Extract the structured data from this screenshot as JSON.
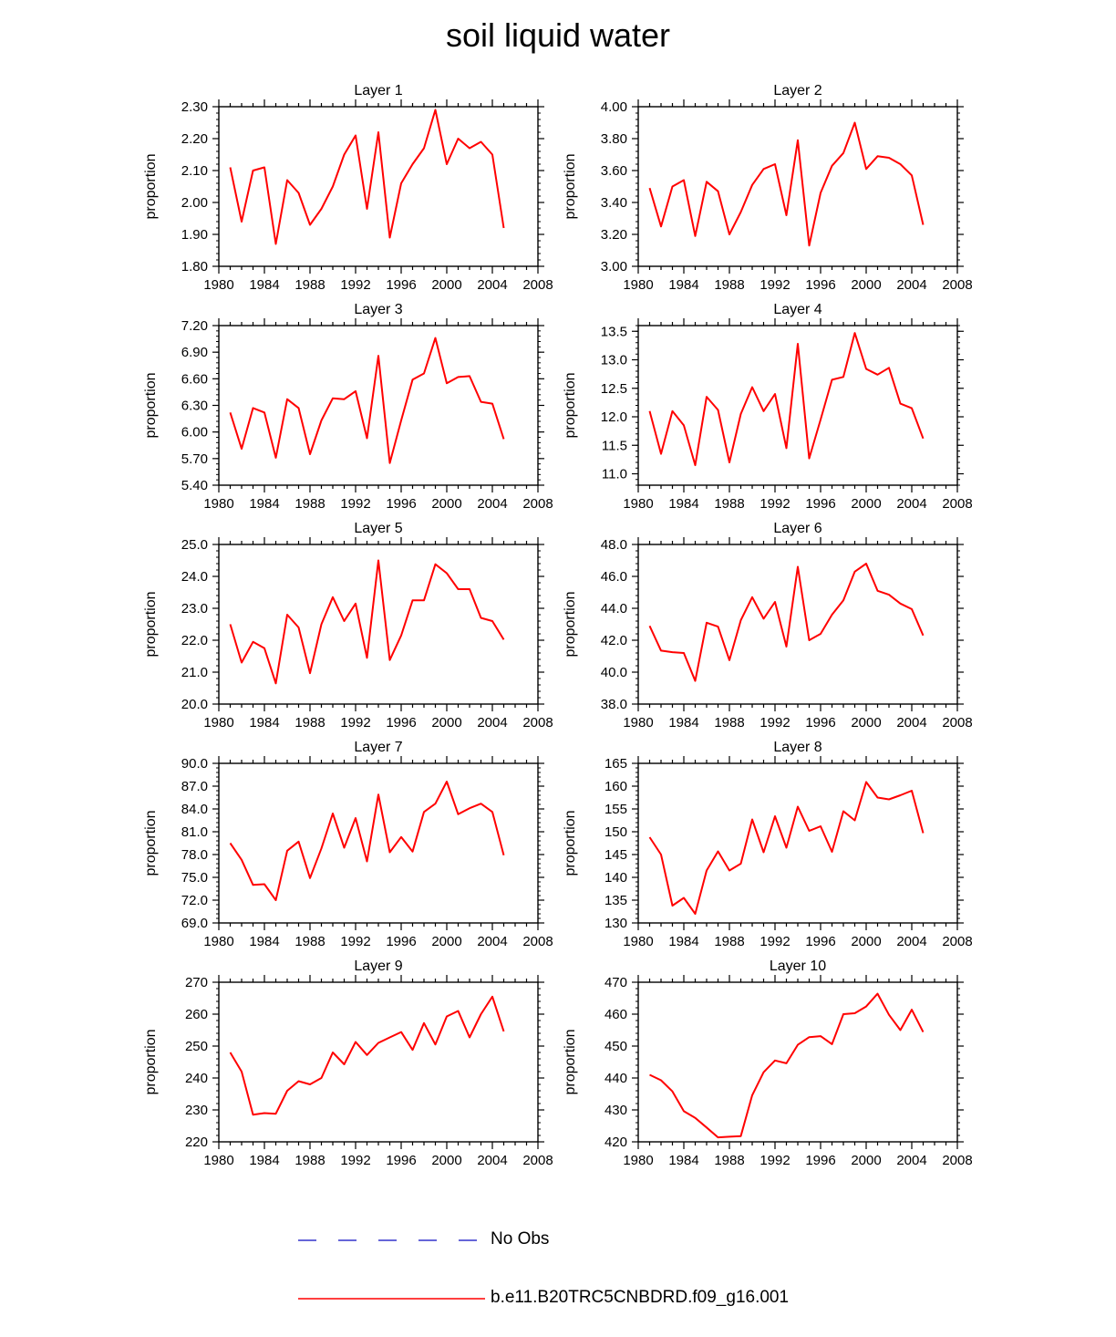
{
  "title": "soil liquid water",
  "legend": {
    "no_obs_label": "No Obs",
    "no_obs_color": "#3333cc",
    "model_label": "b.e11.B20TRC5CNBDRD.f09_g16.001",
    "model_color": "#ff0000"
  },
  "chart_data": [
    {
      "type": "line",
      "title": "Layer 1",
      "xlabel": "",
      "ylabel": "proportion",
      "xlim": [
        1980,
        2008
      ],
      "xticks": [
        "1980",
        "1984",
        "1988",
        "1992",
        "1996",
        "2000",
        "2004",
        "2008"
      ],
      "ylim": [
        1.8,
        2.3
      ],
      "yticks": [
        "1.80",
        "1.90",
        "2.00",
        "2.10",
        "2.20",
        "2.30"
      ],
      "x": [
        1981,
        1982,
        1983,
        1984,
        1985,
        1986,
        1987,
        1988,
        1989,
        1990,
        1991,
        1992,
        1993,
        1994,
        1995,
        1996,
        1997,
        1998,
        1999,
        2000,
        2001,
        2002,
        2003,
        2004,
        2005
      ],
      "series": [
        {
          "name": "b.e11.B20TRC5CNBDRD.f09_g16.001",
          "values": [
            2.11,
            1.94,
            2.1,
            2.11,
            1.87,
            2.07,
            2.03,
            1.93,
            1.98,
            2.05,
            2.15,
            2.21,
            1.98,
            2.22,
            1.89,
            2.06,
            2.12,
            2.17,
            2.29,
            2.12,
            2.2,
            2.17,
            2.19,
            2.15,
            1.92
          ]
        }
      ]
    },
    {
      "type": "line",
      "title": "Layer 2",
      "xlabel": "",
      "ylabel": "proportion",
      "xlim": [
        1980,
        2008
      ],
      "xticks": [
        "1980",
        "1984",
        "1988",
        "1992",
        "1996",
        "2000",
        "2004",
        "2008"
      ],
      "ylim": [
        3.0,
        4.0
      ],
      "yticks": [
        "3.00",
        "3.20",
        "3.40",
        "3.60",
        "3.80",
        "4.00"
      ],
      "x": [
        1981,
        1982,
        1983,
        1984,
        1985,
        1986,
        1987,
        1988,
        1989,
        1990,
        1991,
        1992,
        1993,
        1994,
        1995,
        1996,
        1997,
        1998,
        1999,
        2000,
        2001,
        2002,
        2003,
        2004,
        2005
      ],
      "series": [
        {
          "name": "b.e11.B20TRC5CNBDRD.f09_g16.001",
          "values": [
            3.49,
            3.25,
            3.5,
            3.54,
            3.19,
            3.53,
            3.47,
            3.2,
            3.34,
            3.51,
            3.61,
            3.64,
            3.32,
            3.79,
            3.13,
            3.46,
            3.63,
            3.71,
            3.9,
            3.61,
            3.69,
            3.68,
            3.64,
            3.57,
            3.26
          ]
        }
      ]
    },
    {
      "type": "line",
      "title": "Layer 3",
      "xlabel": "",
      "ylabel": "proportion",
      "xlim": [
        1980,
        2008
      ],
      "xticks": [
        "1980",
        "1984",
        "1988",
        "1992",
        "1996",
        "2000",
        "2004",
        "2008"
      ],
      "ylim": [
        5.4,
        7.2
      ],
      "yticks": [
        "5.40",
        "5.70",
        "6.00",
        "6.30",
        "6.60",
        "6.90",
        "7.20"
      ],
      "x": [
        1981,
        1982,
        1983,
        1984,
        1985,
        1986,
        1987,
        1988,
        1989,
        1990,
        1991,
        1992,
        1993,
        1994,
        1995,
        1996,
        1997,
        1998,
        1999,
        2000,
        2001,
        2002,
        2003,
        2004,
        2005
      ],
      "series": [
        {
          "name": "b.e11.B20TRC5CNBDRD.f09_g16.001",
          "values": [
            6.22,
            5.81,
            6.27,
            6.22,
            5.71,
            6.37,
            6.27,
            5.75,
            6.13,
            6.38,
            6.37,
            6.46,
            5.93,
            6.86,
            5.65,
            6.13,
            6.59,
            6.66,
            7.06,
            6.55,
            6.62,
            6.63,
            6.34,
            6.32,
            5.92
          ]
        }
      ]
    },
    {
      "type": "line",
      "title": "Layer 4",
      "xlabel": "",
      "ylabel": "proportion",
      "xlim": [
        1980,
        2008
      ],
      "xticks": [
        "1980",
        "1984",
        "1988",
        "1992",
        "1996",
        "2000",
        "2004",
        "2008"
      ],
      "ylim": [
        10.8,
        13.6
      ],
      "yticks": [
        "11.0",
        "11.5",
        "12.0",
        "12.5",
        "13.0",
        "13.5"
      ],
      "x": [
        1981,
        1982,
        1983,
        1984,
        1985,
        1986,
        1987,
        1988,
        1989,
        1990,
        1991,
        1992,
        1993,
        1994,
        1995,
        1996,
        1997,
        1998,
        1999,
        2000,
        2001,
        2002,
        2003,
        2004,
        2005
      ],
      "series": [
        {
          "name": "b.e11.B20TRC5CNBDRD.f09_g16.001",
          "values": [
            12.1,
            11.35,
            12.1,
            11.85,
            11.15,
            12.35,
            12.12,
            11.2,
            12.05,
            12.52,
            12.1,
            12.4,
            11.45,
            13.28,
            11.27,
            11.95,
            12.65,
            12.7,
            13.47,
            12.84,
            12.74,
            12.86,
            12.23,
            12.15,
            11.62
          ]
        }
      ]
    },
    {
      "type": "line",
      "title": "Layer 5",
      "xlabel": "",
      "ylabel": "proportion",
      "xlim": [
        1980,
        2008
      ],
      "xticks": [
        "1980",
        "1984",
        "1988",
        "1992",
        "1996",
        "2000",
        "2004",
        "2008"
      ],
      "ylim": [
        20.0,
        25.0
      ],
      "yticks": [
        "20.0",
        "21.0",
        "22.0",
        "23.0",
        "24.0",
        "25.0"
      ],
      "x": [
        1981,
        1982,
        1983,
        1984,
        1985,
        1986,
        1987,
        1988,
        1989,
        1990,
        1991,
        1992,
        1993,
        1994,
        1995,
        1996,
        1997,
        1998,
        1999,
        2000,
        2001,
        2002,
        2003,
        2004,
        2005
      ],
      "series": [
        {
          "name": "b.e11.B20TRC5CNBDRD.f09_g16.001",
          "values": [
            22.5,
            21.3,
            21.95,
            21.75,
            20.65,
            22.8,
            22.4,
            20.97,
            22.5,
            23.35,
            22.6,
            23.15,
            21.45,
            24.5,
            21.38,
            22.15,
            23.25,
            23.25,
            24.38,
            24.1,
            23.6,
            23.6,
            22.7,
            22.6,
            22.02
          ]
        }
      ]
    },
    {
      "type": "line",
      "title": "Layer 6",
      "xlabel": "",
      "ylabel": "proportion",
      "xlim": [
        1980,
        2008
      ],
      "xticks": [
        "1980",
        "1984",
        "1988",
        "1992",
        "1996",
        "2000",
        "2004",
        "2008"
      ],
      "ylim": [
        38.0,
        48.0
      ],
      "yticks": [
        "38.0",
        "40.0",
        "42.0",
        "44.0",
        "46.0",
        "48.0"
      ],
      "x": [
        1981,
        1982,
        1983,
        1984,
        1985,
        1986,
        1987,
        1988,
        1989,
        1990,
        1991,
        1992,
        1993,
        1994,
        1995,
        1996,
        1997,
        1998,
        1999,
        2000,
        2001,
        2002,
        2003,
        2004,
        2005
      ],
      "series": [
        {
          "name": "b.e11.B20TRC5CNBDRD.f09_g16.001",
          "values": [
            42.9,
            41.35,
            41.25,
            41.2,
            39.45,
            43.1,
            42.85,
            40.75,
            43.25,
            44.7,
            43.35,
            44.4,
            41.6,
            46.6,
            42.0,
            42.4,
            43.6,
            44.5,
            46.3,
            46.8,
            45.1,
            44.85,
            44.3,
            43.95,
            42.3
          ]
        }
      ]
    },
    {
      "type": "line",
      "title": "Layer 7",
      "xlabel": "",
      "ylabel": "proportion",
      "xlim": [
        1980,
        2008
      ],
      "xticks": [
        "1980",
        "1984",
        "1988",
        "1992",
        "1996",
        "2000",
        "2004",
        "2008"
      ],
      "ylim": [
        69.0,
        90.0
      ],
      "yticks": [
        "69.0",
        "72.0",
        "75.0",
        "78.0",
        "81.0",
        "84.0",
        "87.0",
        "90.0"
      ],
      "x": [
        1981,
        1982,
        1983,
        1984,
        1985,
        1986,
        1987,
        1988,
        1989,
        1990,
        1991,
        1992,
        1993,
        1994,
        1995,
        1996,
        1997,
        1998,
        1999,
        2000,
        2001,
        2002,
        2003,
        2004,
        2005
      ],
      "series": [
        {
          "name": "b.e11.B20TRC5CNBDRD.f09_g16.001",
          "values": [
            79.5,
            77.3,
            74.0,
            74.1,
            72.0,
            78.5,
            79.7,
            74.9,
            78.8,
            83.4,
            78.9,
            82.8,
            77.1,
            85.9,
            78.3,
            80.3,
            78.4,
            83.6,
            84.7,
            87.6,
            83.3,
            84.1,
            84.7,
            83.6,
            77.9
          ]
        }
      ]
    },
    {
      "type": "line",
      "title": "Layer 8",
      "xlabel": "",
      "ylabel": "proportion",
      "xlim": [
        1980,
        2008
      ],
      "xticks": [
        "1980",
        "1984",
        "1988",
        "1992",
        "1996",
        "2000",
        "2004",
        "2008"
      ],
      "ylim": [
        130,
        165
      ],
      "yticks": [
        "130",
        "135",
        "140",
        "145",
        "150",
        "155",
        "160",
        "165"
      ],
      "x": [
        1981,
        1982,
        1983,
        1984,
        1985,
        1986,
        1987,
        1988,
        1989,
        1990,
        1991,
        1992,
        1993,
        1994,
        1995,
        1996,
        1997,
        1998,
        1999,
        2000,
        2001,
        2002,
        2003,
        2004,
        2005
      ],
      "series": [
        {
          "name": "b.e11.B20TRC5CNBDRD.f09_g16.001",
          "values": [
            148.8,
            145.0,
            133.8,
            135.5,
            132.0,
            141.5,
            145.7,
            141.5,
            143.0,
            152.7,
            145.5,
            153.4,
            146.5,
            155.5,
            150.2,
            151.2,
            145.6,
            154.5,
            152.5,
            160.9,
            157.5,
            157.1,
            158.0,
            159.0,
            149.7
          ]
        }
      ]
    },
    {
      "type": "line",
      "title": "Layer 9",
      "xlabel": "",
      "ylabel": "proportion",
      "xlim": [
        1980,
        2008
      ],
      "xticks": [
        "1980",
        "1984",
        "1988",
        "1992",
        "1996",
        "2000",
        "2004",
        "2008"
      ],
      "ylim": [
        220,
        270
      ],
      "yticks": [
        "220",
        "230",
        "240",
        "250",
        "260",
        "270"
      ],
      "x": [
        1981,
        1982,
        1983,
        1984,
        1985,
        1986,
        1987,
        1988,
        1989,
        1990,
        1991,
        1992,
        1993,
        1994,
        1995,
        1996,
        1997,
        1998,
        1999,
        2000,
        2001,
        2002,
        2003,
        2004,
        2005
      ],
      "series": [
        {
          "name": "b.e11.B20TRC5CNBDRD.f09_g16.001",
          "values": [
            248.0,
            242.0,
            228.5,
            229.0,
            228.8,
            236.0,
            239.0,
            238.0,
            240.0,
            248.0,
            244.3,
            251.3,
            247.2,
            251.0,
            252.7,
            254.4,
            248.8,
            257.2,
            250.5,
            259.3,
            261.0,
            252.7,
            260.0,
            265.5,
            254.6
          ]
        }
      ]
    },
    {
      "type": "line",
      "title": "Layer 10",
      "xlabel": "",
      "ylabel": "proportion",
      "xlim": [
        1980,
        2008
      ],
      "xticks": [
        "1980",
        "1984",
        "1988",
        "1992",
        "1996",
        "2000",
        "2004",
        "2008"
      ],
      "ylim": [
        420,
        470
      ],
      "yticks": [
        "420",
        "430",
        "440",
        "450",
        "460",
        "470"
      ],
      "x": [
        1981,
        1982,
        1983,
        1984,
        1985,
        1986,
        1987,
        1988,
        1989,
        1990,
        1991,
        1992,
        1993,
        1994,
        1995,
        1996,
        1997,
        1998,
        1999,
        2000,
        2001,
        2002,
        2003,
        2004,
        2005
      ],
      "series": [
        {
          "name": "b.e11.B20TRC5CNBDRD.f09_g16.001",
          "values": [
            441.0,
            439.3,
            435.8,
            429.6,
            427.5,
            424.5,
            421.4,
            421.6,
            421.8,
            434.6,
            441.8,
            445.5,
            444.6,
            450.4,
            452.8,
            453.1,
            450.6,
            460.0,
            460.3,
            462.4,
            466.4,
            459.8,
            455.0,
            461.4,
            454.4
          ]
        }
      ]
    }
  ]
}
